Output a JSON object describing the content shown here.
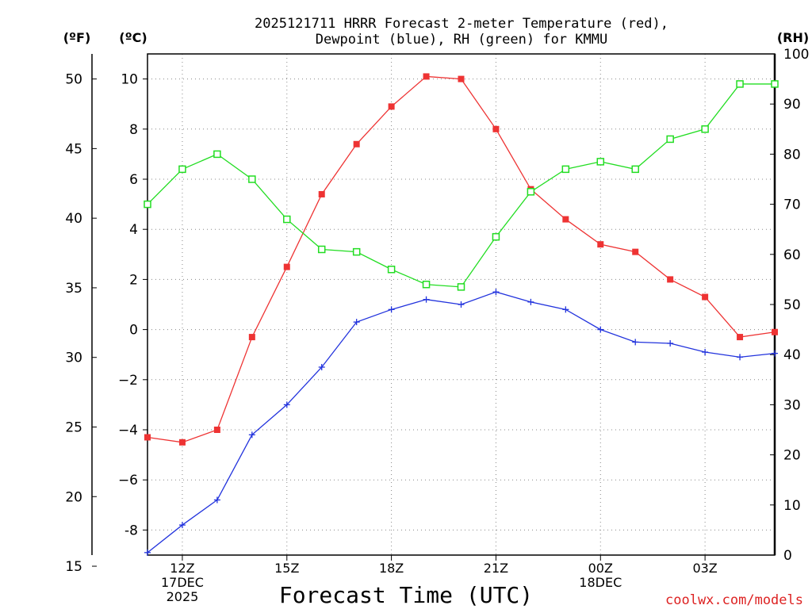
{
  "title_line1": "2025121711 HRRR Forecast 2-meter Temperature (red),",
  "title_line2": "Dewpoint (blue), RH (green) for KMMU",
  "units": {
    "f": "(ºF)",
    "c": "(ºC)",
    "rh": "(RH)"
  },
  "xlabel": "Forecast Time (UTC)",
  "credit": "coolwx.com/models",
  "colors": {
    "temp": "#ee3333",
    "dew": "#2233dd",
    "rh": "#22dd22",
    "credit": "#dd2222"
  },
  "chart_data": {
    "type": "line",
    "x_hours": [
      0,
      1,
      2,
      3,
      4,
      5,
      6,
      7,
      8,
      9,
      10,
      11,
      12,
      13,
      14,
      15,
      16,
      17,
      18
    ],
    "x_tick_labels": [
      {
        "hour": 1,
        "lines": [
          "12Z",
          "17DEC",
          "2025"
        ]
      },
      {
        "hour": 4,
        "lines": [
          "15Z"
        ]
      },
      {
        "hour": 7,
        "lines": [
          "18Z"
        ]
      },
      {
        "hour": 10,
        "lines": [
          "21Z"
        ]
      },
      {
        "hour": 13,
        "lines": [
          "00Z",
          "18DEC"
        ]
      },
      {
        "hour": 16,
        "lines": [
          "03Z"
        ]
      }
    ],
    "y_celsius_ticks": [
      "-8",
      "−6",
      "−4",
      "−2",
      "0",
      "2",
      "4",
      "6",
      "8",
      "10"
    ],
    "y_celsius_values": [
      -8,
      -6,
      -4,
      -2,
      0,
      2,
      4,
      6,
      8,
      10
    ],
    "y_fahrenheit_ticks": [
      "15",
      "20",
      "25",
      "30",
      "35",
      "40",
      "45",
      "50"
    ],
    "y_fahrenheit_values": [
      15,
      20,
      25,
      30,
      35,
      40,
      45,
      50
    ],
    "y_rh_ticks": [
      "0",
      "10",
      "20",
      "30",
      "40",
      "50",
      "60",
      "70",
      "80",
      "90",
      "100"
    ],
    "y_rh_values": [
      0,
      10,
      20,
      30,
      40,
      50,
      60,
      70,
      80,
      90,
      100
    ],
    "ylim_celsius": [
      -9.0,
      11.0
    ],
    "ylim_rh": [
      0,
      100
    ],
    "series": [
      {
        "name": "Temperature",
        "axis": "celsius",
        "marker": "square-filled",
        "values": [
          -4.3,
          -4.5,
          -4.0,
          -0.3,
          2.5,
          5.4,
          7.4,
          8.9,
          10.1,
          10.0,
          8.0,
          5.6,
          4.4,
          3.4,
          3.1,
          2.0,
          1.3,
          -0.3,
          -0.1
        ]
      },
      {
        "name": "Dewpoint",
        "axis": "celsius",
        "marker": "plus",
        "values": [
          -8.9,
          -7.8,
          -6.8,
          -4.2,
          -3.0,
          -1.5,
          0.3,
          0.8,
          1.2,
          1.0,
          1.5,
          1.1,
          0.8,
          0.0,
          -0.5,
          -0.55,
          -0.9,
          -1.1,
          -0.95
        ]
      },
      {
        "name": "RH",
        "axis": "rh",
        "marker": "square-open",
        "values": [
          70.0,
          77.0,
          80.0,
          75.0,
          67.0,
          61.0,
          60.5,
          57.0,
          54.0,
          53.5,
          63.5,
          72.5,
          77.0,
          78.5,
          77.0,
          83.0,
          85.0,
          94.0,
          94.0
        ]
      }
    ]
  }
}
